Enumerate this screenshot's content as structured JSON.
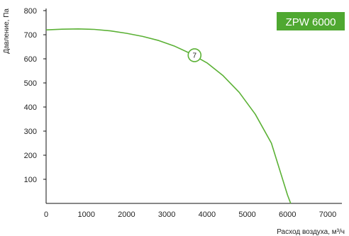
{
  "chart_data": {
    "type": "line",
    "title": "ZPW 6000",
    "xlabel": "Расход воздуха, м³/ч",
    "ylabel": "Давление, Па",
    "xlim": [
      0,
      7000
    ],
    "ylim": [
      0,
      800
    ],
    "x_ticks": [
      "0",
      "1000",
      "2000",
      "3000",
      "4000",
      "5000",
      "6000",
      "7000"
    ],
    "y_ticks": [
      "100",
      "200",
      "300",
      "400",
      "500",
      "600",
      "700",
      "800"
    ],
    "grid": false,
    "series": [
      {
        "color": "#5bb135",
        "x": [
          0,
          400,
          800,
          1200,
          1600,
          2000,
          2400,
          2800,
          3200,
          3600,
          4000,
          4400,
          4800,
          5200,
          5600,
          6000,
          6080
        ],
        "y": [
          720,
          723,
          724,
          722,
          716,
          706,
          693,
          676,
          652,
          621,
          583,
          530,
          461,
          370,
          250,
          35,
          0
        ]
      }
    ],
    "markers": [
      {
        "label": "7",
        "x": 3690,
        "y": 615
      }
    ],
    "badge_color": "#4fa831"
  }
}
